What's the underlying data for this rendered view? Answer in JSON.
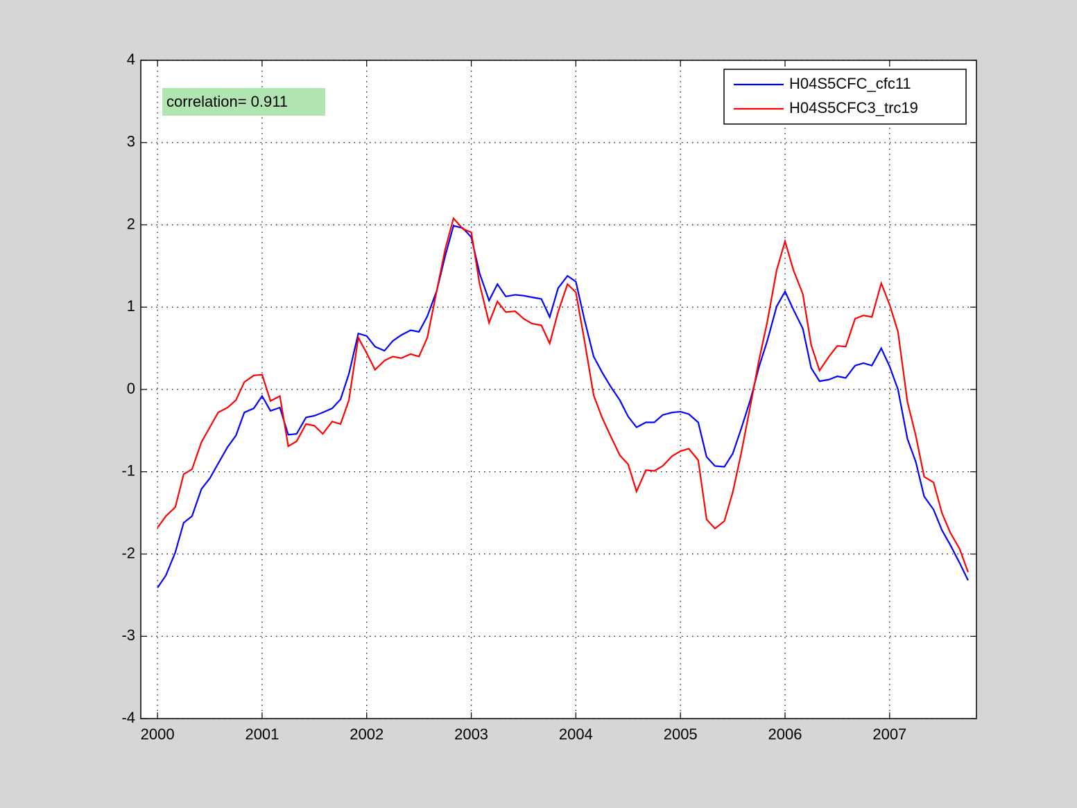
{
  "chart_data": {
    "type": "line",
    "annotation": "correlation= 0.911",
    "x": [
      2000,
      2000.08,
      2000.17,
      2000.25,
      2000.33,
      2000.42,
      2000.5,
      2000.58,
      2000.67,
      2000.75,
      2000.83,
      2000.92,
      2001,
      2001.08,
      2001.17,
      2001.25,
      2001.33,
      2001.42,
      2001.5,
      2001.58,
      2001.67,
      2001.75,
      2001.83,
      2001.92,
      2002,
      2002.08,
      2002.17,
      2002.25,
      2002.33,
      2002.42,
      2002.5,
      2002.58,
      2002.67,
      2002.75,
      2002.83,
      2002.92,
      2003,
      2003.08,
      2003.17,
      2003.25,
      2003.33,
      2003.42,
      2003.5,
      2003.58,
      2003.67,
      2003.75,
      2003.83,
      2003.92,
      2004,
      2004.08,
      2004.17,
      2004.25,
      2004.33,
      2004.42,
      2004.5,
      2004.58,
      2004.67,
      2004.75,
      2004.83,
      2004.92,
      2005,
      2005.08,
      2005.17,
      2005.25,
      2005.33,
      2005.42,
      2005.5,
      2005.58,
      2005.67,
      2005.75,
      2005.83,
      2005.92,
      2006,
      2006.08,
      2006.17,
      2006.25,
      2006.33,
      2006.42,
      2006.5,
      2006.58,
      2006.67,
      2006.75,
      2006.83,
      2006.92,
      2007,
      2007.08,
      2007.17,
      2007.25,
      2007.33,
      2007.42,
      2007.5,
      2007.58,
      2007.67,
      2007.75
    ],
    "series": [
      {
        "name": "H04S5CFC_cfc11",
        "color": "#0000ff",
        "values": [
          -2.41,
          -2.26,
          -1.98,
          -1.62,
          -1.54,
          -1.21,
          -1.08,
          -0.9,
          -0.7,
          -0.56,
          -0.28,
          -0.23,
          -0.08,
          -0.26,
          -0.22,
          -0.55,
          -0.54,
          -0.34,
          -0.32,
          -0.28,
          -0.23,
          -0.12,
          0.19,
          0.68,
          0.65,
          0.52,
          0.47,
          0.59,
          0.66,
          0.72,
          0.7,
          0.89,
          1.2,
          1.62,
          1.99,
          1.96,
          1.85,
          1.41,
          1.08,
          1.28,
          1.13,
          1.15,
          1.14,
          1.12,
          1.1,
          0.88,
          1.23,
          1.38,
          1.31,
          0.86,
          0.4,
          0.21,
          0.04,
          -0.13,
          -0.33,
          -0.46,
          -0.4,
          -0.4,
          -0.31,
          -0.28,
          -0.27,
          -0.3,
          -0.4,
          -0.82,
          -0.93,
          -0.94,
          -0.78,
          -0.48,
          -0.12,
          0.27,
          0.59,
          1.01,
          1.19,
          0.97,
          0.74,
          0.26,
          0.1,
          0.12,
          0.16,
          0.14,
          0.29,
          0.32,
          0.29,
          0.5,
          0.28,
          0,
          -0.6,
          -0.88,
          -1.3,
          -1.46,
          -1.71,
          -1.89,
          -2.11,
          -2.32
        ]
      },
      {
        "name": "H04S5CFC3_trc19",
        "color": "#ff0000",
        "values": [
          -1.68,
          -1.54,
          -1.43,
          -1.03,
          -0.97,
          -0.64,
          -0.46,
          -0.28,
          -0.22,
          -0.13,
          0.09,
          0.17,
          0.18,
          -0.14,
          -0.08,
          -0.69,
          -0.63,
          -0.42,
          -0.44,
          -0.54,
          -0.39,
          -0.42,
          -0.13,
          0.63,
          0.44,
          0.24,
          0.35,
          0.4,
          0.38,
          0.43,
          0.4,
          0.63,
          1.2,
          1.7,
          2.08,
          1.95,
          1.91,
          1.28,
          0.81,
          1.07,
          0.94,
          0.95,
          0.86,
          0.8,
          0.78,
          0.56,
          0.94,
          1.28,
          1.18,
          0.61,
          -0.07,
          -0.34,
          -0.56,
          -0.8,
          -0.91,
          -1.24,
          -0.98,
          -0.99,
          -0.93,
          -0.81,
          -0.75,
          -0.72,
          -0.86,
          -1.58,
          -1.69,
          -1.6,
          -1.25,
          -0.78,
          -0.19,
          0.35,
          0.82,
          1.45,
          1.8,
          1.45,
          1.16,
          0.54,
          0.23,
          0.4,
          0.53,
          0.52,
          0.86,
          0.9,
          0.88,
          1.29,
          1.03,
          0.7,
          -0.15,
          -0.56,
          -1.06,
          -1.13,
          -1.5,
          -1.74,
          -1.94,
          -2.22
        ]
      }
    ],
    "xlim": [
      1999.84,
      2007.83
    ],
    "xticks": [
      2000,
      2001,
      2002,
      2003,
      2004,
      2005,
      2006,
      2007
    ],
    "ylim": [
      -4,
      4
    ],
    "yticks": [
      -4,
      -3,
      -2,
      -1,
      0,
      1,
      2,
      3,
      4
    ],
    "grid": true,
    "legend": "northeast"
  }
}
